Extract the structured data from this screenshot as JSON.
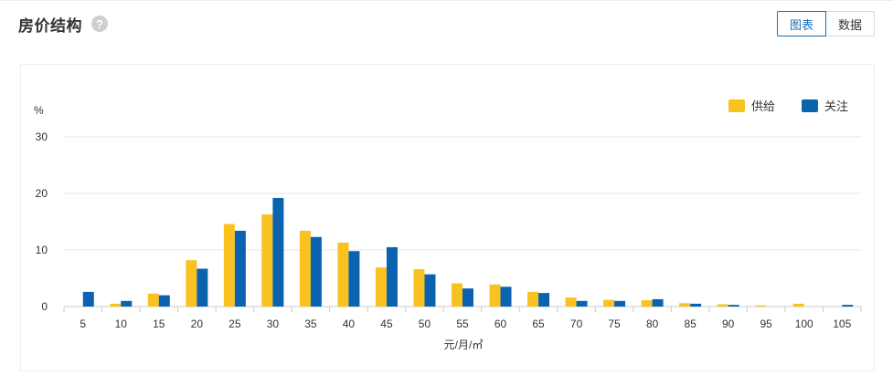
{
  "header": {
    "title": "房价结构",
    "help_glyph": "?",
    "help_icon": "question-circle-icon"
  },
  "view_toggle": {
    "chart_label": "图表",
    "data_label": "数据",
    "active": "chart"
  },
  "colors": {
    "supply": "#f9c21f",
    "attention": "#0b63b0",
    "accent": "#1a6fb8"
  },
  "chart_data": {
    "type": "bar",
    "title": "",
    "ylabel": "%",
    "xlabel": "元/月/㎡",
    "ylim": [
      0,
      30
    ],
    "yticks": [
      0,
      10,
      20,
      30
    ],
    "grid": true,
    "legend_position": "top-right",
    "categories": [
      "5",
      "10",
      "15",
      "20",
      "25",
      "30",
      "35",
      "40",
      "45",
      "50",
      "55",
      "60",
      "65",
      "70",
      "75",
      "80",
      "85",
      "90",
      "95",
      "100",
      "105"
    ],
    "series": [
      {
        "name": "供给",
        "color": "#f9c21f",
        "values": [
          0,
          0.5,
          2.3,
          8.2,
          14.6,
          16.3,
          13.4,
          11.3,
          6.9,
          6.6,
          4.1,
          3.9,
          2.6,
          1.6,
          1.2,
          1.1,
          0.6,
          0.4,
          0.2,
          0.5,
          0
        ]
      },
      {
        "name": "关注",
        "color": "#0b63b0",
        "values": [
          2.6,
          1.0,
          2.0,
          6.7,
          13.4,
          19.2,
          12.3,
          9.8,
          10.5,
          5.7,
          3.2,
          3.5,
          2.4,
          1.0,
          1.0,
          1.3,
          0.5,
          0.3,
          0,
          0,
          0.3
        ]
      }
    ]
  }
}
